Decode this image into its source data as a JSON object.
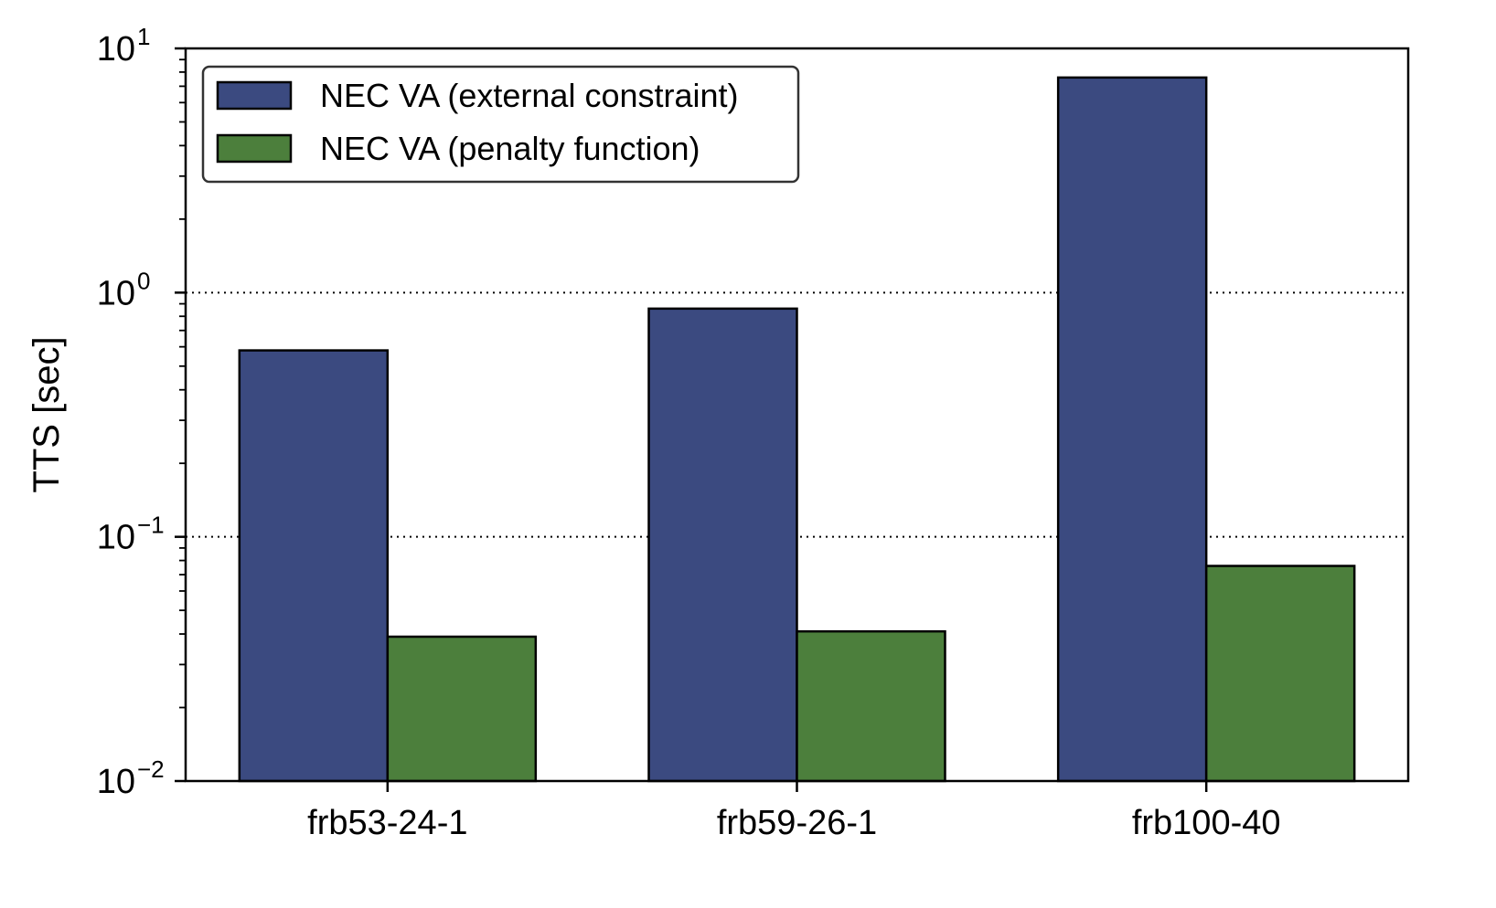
{
  "chart_data": {
    "type": "bar",
    "title": "",
    "xlabel": "",
    "ylabel": "TTS [sec]",
    "yscale": "log",
    "ylim": [
      0.01,
      10
    ],
    "y_ticks": [
      {
        "value": 0.01,
        "base": "10",
        "exponent": "−2"
      },
      {
        "value": 0.1,
        "base": "10",
        "exponent": "−1"
      },
      {
        "value": 1,
        "base": "10",
        "exponent": "0"
      },
      {
        "value": 10,
        "base": "10",
        "exponent": "1"
      }
    ],
    "grid": "horizontal dotted at 10^-1 and 10^0",
    "legend_position": "top-left",
    "categories": [
      "frb53-24-1",
      "frb59-26-1",
      "frb100-40"
    ],
    "series": [
      {
        "name": "NEC VA (external constraint)",
        "color": "#3b4a80",
        "values": [
          0.58,
          0.86,
          7.6
        ]
      },
      {
        "name": "NEC VA (penalty function)",
        "color": "#4c7f3c",
        "values": [
          0.039,
          0.041,
          0.076
        ]
      }
    ]
  }
}
